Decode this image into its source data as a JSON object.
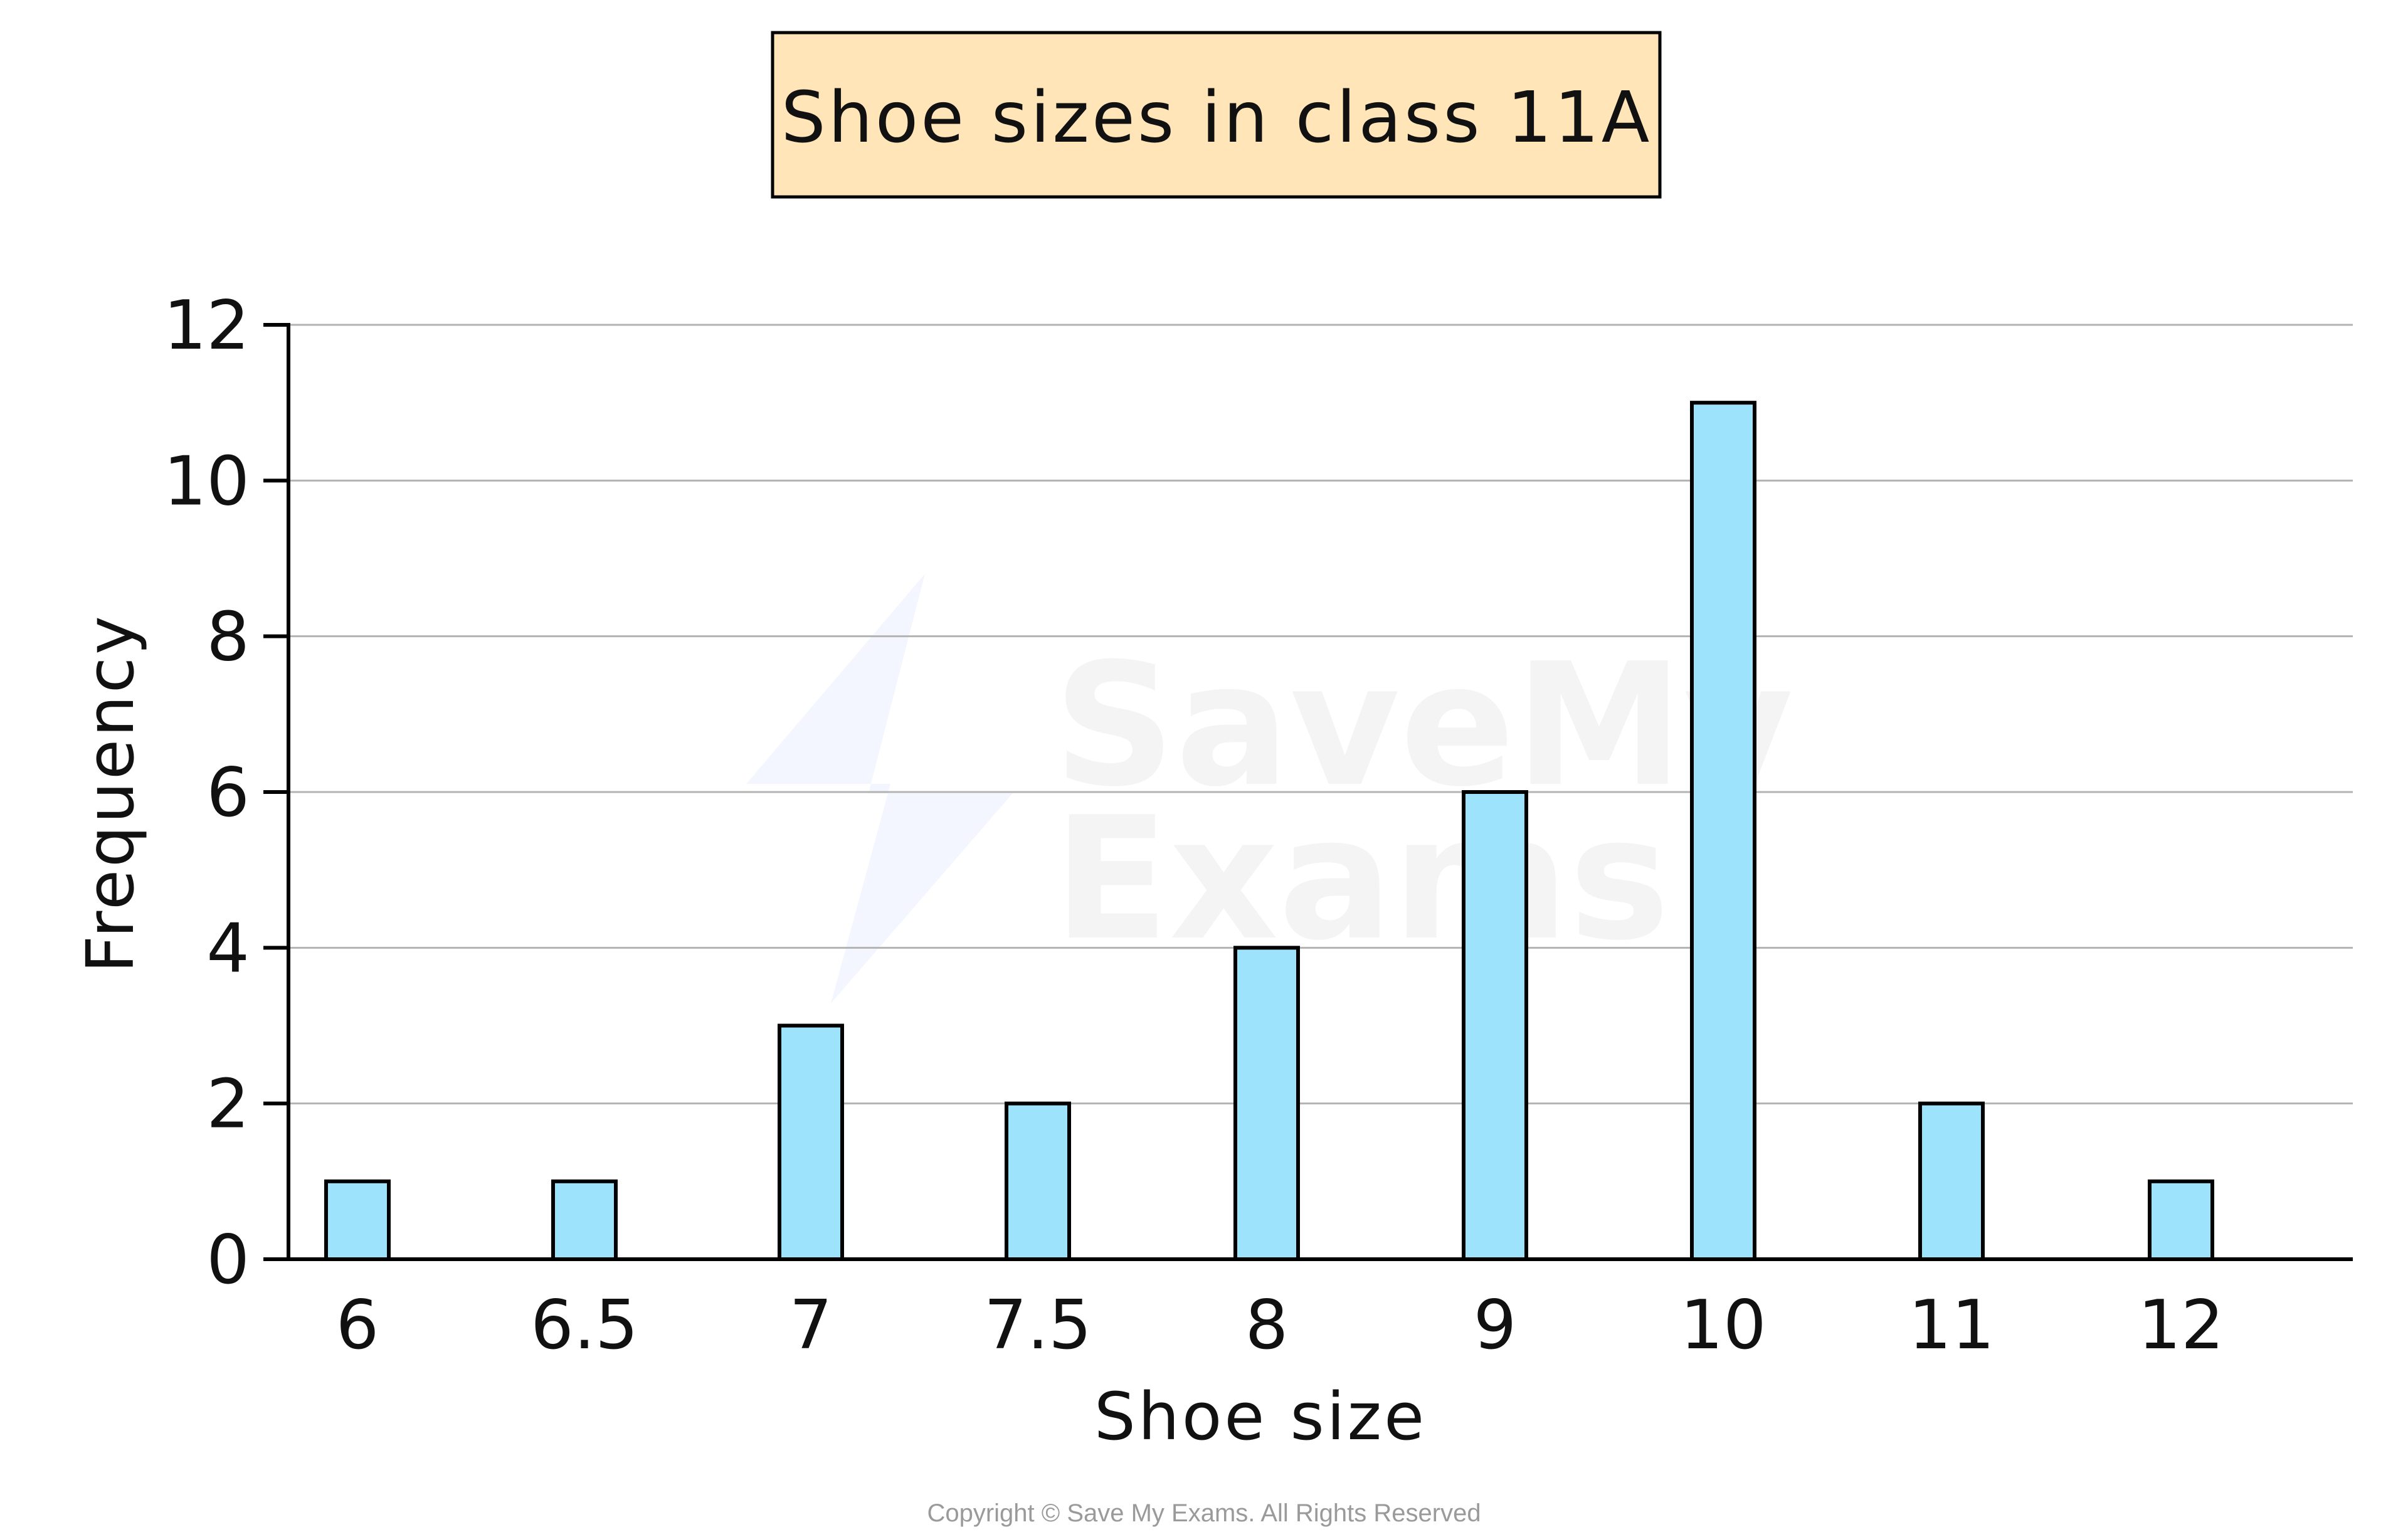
{
  "chart_data": {
    "type": "bar",
    "title": "Shoe sizes in class 11A",
    "xlabel": "Shoe size",
    "ylabel": "Frequency",
    "categories": [
      "6",
      "6.5",
      "7",
      "7.5",
      "8",
      "9",
      "10",
      "11",
      "12"
    ],
    "values": [
      1,
      1,
      3,
      2,
      4,
      6,
      11,
      2,
      1
    ],
    "ylim": [
      0,
      12
    ],
    "yticks": [
      0,
      2,
      4,
      6,
      8,
      10,
      12
    ],
    "grid": true,
    "bar_color": "#9ee3fc",
    "title_box_color": "#ffe5b8"
  },
  "footer": {
    "copyright": "Copyright © Save My Exams. All Rights Reserved"
  }
}
